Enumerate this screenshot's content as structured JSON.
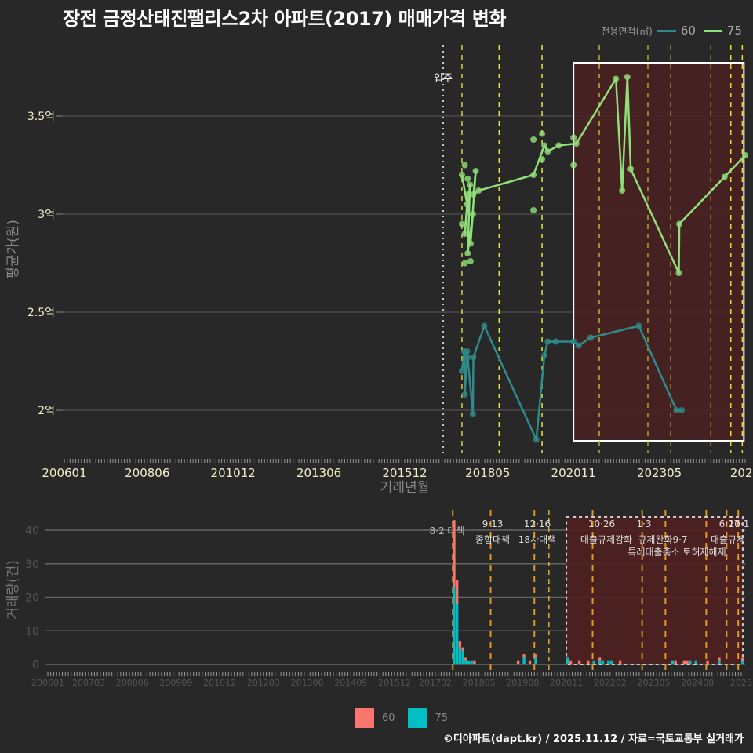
{
  "title": "장전 금정산태진팰리스2차 아파트(2017) 매매가격 변화",
  "legend_top": {
    "title": "전용면적(㎡)",
    "items": [
      {
        "label": "60",
        "color": "#2e8b8b"
      },
      {
        "label": "75",
        "color": "#90e07a"
      }
    ]
  },
  "legend_bottom": {
    "items": [
      {
        "label": "60",
        "color": "#f8766d"
      },
      {
        "label": "75",
        "color": "#00bfc4"
      }
    ]
  },
  "credit": "©디아파트(dapt.kr) / 2025.11.12 / 자료=국토교통부 실거래가",
  "chart_data": [
    {
      "type": "line",
      "title": "장전 금정산태진팰리스2차 아파트(2017) 매매가격 변화",
      "xlabel": "거래년월",
      "ylabel": "평균가(원)",
      "x_tick_labels": [
        "200601",
        "200806",
        "201012",
        "201306",
        "201512",
        "201805",
        "202011",
        "202305",
        "2025"
      ],
      "y_tick_labels": [
        "2억",
        "2.5억",
        "3억",
        "3.5억"
      ],
      "y_ticks": [
        2.0,
        2.5,
        3.0,
        3.5
      ],
      "ylim": [
        1.75,
        3.78
      ],
      "grid": true,
      "annotation_vline": {
        "label": "입주",
        "x": "201702"
      },
      "highlight_box": {
        "x_start": "202011",
        "x_end": "202510"
      },
      "series": [
        {
          "name": "60",
          "x": [
            "201708",
            "201708",
            "201709",
            "201709",
            "201710",
            "201711",
            "201712",
            "201803",
            "201910",
            "201912",
            "202002",
            "202004",
            "202011",
            "202012",
            "202105",
            "202209",
            "202311",
            "202312"
          ],
          "values": [
            2.2,
            2.3,
            2.08,
            2.3,
            2.27,
            1.98,
            2.27,
            2.43,
            1.85,
            2.28,
            2.35,
            2.35,
            2.35,
            2.33,
            2.37,
            2.43,
            2.0,
            2.0
          ]
        },
        {
          "name": "75",
          "x": [
            "201708",
            "201709",
            "201709",
            "201710",
            "201710",
            "201711",
            "201711",
            "201712",
            "201712",
            "201801",
            "201909",
            "201912",
            "202002",
            "202005",
            "202012",
            "202201",
            "202204",
            "202205",
            "202207",
            "202311",
            "202312",
            "202503",
            "202511"
          ],
          "values": [
            3.2,
            3.05,
            2.9,
            3.15,
            2.8,
            3.0,
            2.85,
            3.22,
            3.1,
            3.12,
            3.2,
            3.35,
            3.32,
            3.35,
            3.36,
            3.69,
            3.12,
            3.7,
            3.23,
            2.7,
            2.95,
            3.19,
            3.3
          ]
        }
      ]
    },
    {
      "type": "bar",
      "xlabel": "",
      "ylabel": "거래량(건)",
      "x_tick_labels": [
        "200601",
        "200703",
        "200806",
        "200909",
        "201012",
        "201203",
        "201306",
        "201409",
        "201512",
        "201702",
        "201805",
        "201908",
        "202011",
        "202202",
        "202305",
        "202408",
        "2025"
      ],
      "y_ticks": [
        0,
        10,
        20,
        30,
        40
      ],
      "ylim": [
        0,
        44
      ],
      "stacked": true,
      "policy_annotations": [
        {
          "date": "201708",
          "label": "8·2 대책"
        },
        {
          "date": "201809",
          "label": "9·13 종합대책"
        },
        {
          "date": "201912",
          "label": "12·16 18차대책"
        },
        {
          "date": "202108",
          "label": "10·26 대출규제강화"
        },
        {
          "date": "202301",
          "label": "1·3 규제완화"
        },
        {
          "date": "202309",
          "label": "9·7 특례대출축소"
        },
        {
          "date": "202411",
          "label": "토허제해제"
        },
        {
          "date": "202506",
          "label": "6·27 대출규제"
        },
        {
          "date": "202510",
          "label": "10·15"
        }
      ],
      "series": [
        {
          "name": "60",
          "x": [
            "201708",
            "201709",
            "201710",
            "201711",
            "201712",
            "201801",
            "201803",
            "201906",
            "201908",
            "201910",
            "201912",
            "202012",
            "202103",
            "202106",
            "202110",
            "202205",
            "202312",
            "202403",
            "202404",
            "202411",
            "202503",
            "202511"
          ],
          "values": [
            20,
            7,
            2,
            1,
            1,
            0,
            1,
            1,
            1,
            1,
            1,
            1,
            1,
            1,
            1,
            1,
            1,
            1,
            1,
            1,
            1,
            1
          ]
        },
        {
          "name": "75",
          "x": [
            "201708",
            "201709",
            "201710",
            "201711",
            "201712",
            "201801",
            "201802",
            "201908",
            "201912",
            "202011",
            "202108",
            "202110",
            "202111",
            "202201",
            "202202",
            "202311",
            "202405",
            "202407",
            "202503",
            "202511"
          ],
          "values": [
            23,
            18,
            5,
            4,
            1,
            1,
            1,
            2,
            2,
            2,
            1,
            1,
            1,
            1,
            1,
            1,
            1,
            1,
            1,
            1
          ]
        }
      ]
    }
  ]
}
